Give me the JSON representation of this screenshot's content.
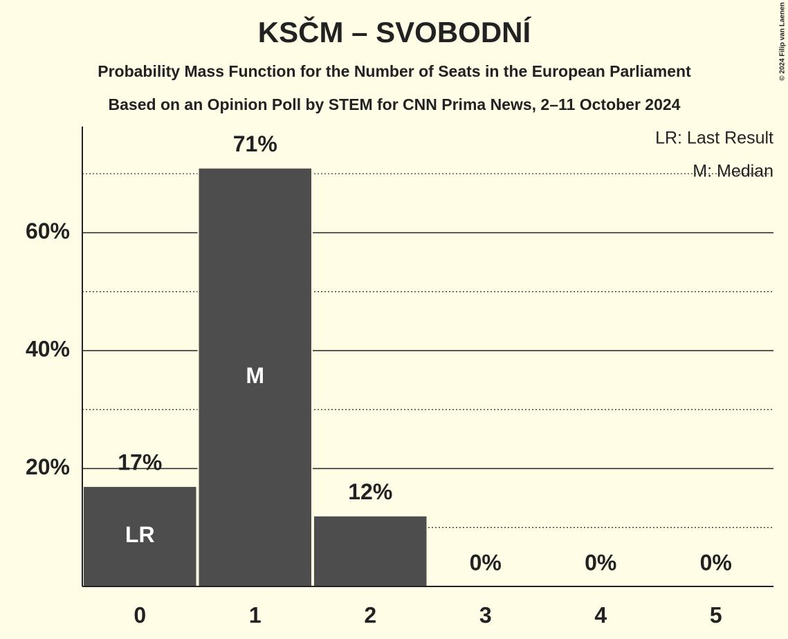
{
  "chart_data": {
    "type": "bar",
    "title": "KSČM – SVOBODNÍ",
    "subtitle": "Probability Mass Function for the Number of Seats in the European Parliament",
    "subtitle2": "Based on an Opinion Poll by STEM for CNN Prima News, 2–11 October 2024",
    "categories": [
      "0",
      "1",
      "2",
      "3",
      "4",
      "5"
    ],
    "values": [
      17,
      71,
      12,
      0,
      0,
      0
    ],
    "value_labels": [
      "17%",
      "71%",
      "12%",
      "0%",
      "0%",
      "0%"
    ],
    "bar_labels": [
      "LR",
      "M",
      null,
      null,
      null,
      null
    ],
    "color": "#4d4d4d",
    "ylim": [
      0,
      78
    ],
    "yticks": [
      {
        "value": 20,
        "label": "20%"
      },
      {
        "value": 40,
        "label": "40%"
      },
      {
        "value": 60,
        "label": "60%"
      }
    ],
    "minor_yticks": [
      10,
      30,
      50,
      70
    ],
    "grid": true,
    "legend_notes": [
      "LR: Last Result",
      "M: Median"
    ],
    "copyright": "© 2024 Filip van Laenen"
  }
}
